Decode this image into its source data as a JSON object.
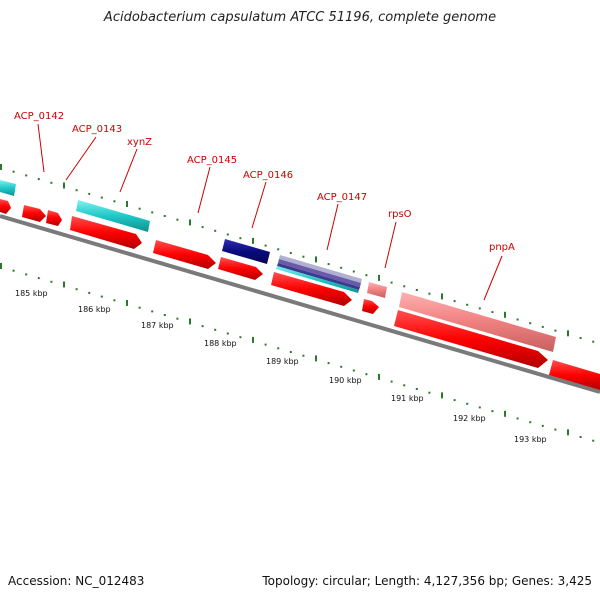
{
  "header": {
    "title": "Acidobacterium capsulatum ATCC 51196, complete genome"
  },
  "footer": {
    "accession": "Accession: NC_012483",
    "summary": "Topology: circular; Length: 4,127,356 bp; Genes: 3,425"
  },
  "colors": {
    "backbone": "#7a7a7a",
    "forward_gene": "#ff0000",
    "reverse_gene_light": "#f08080",
    "cyan_gene": "#20c8c8",
    "navy_gene": "#0a0a80",
    "purple_gene": "#6a5aa8",
    "label": "#cc0000",
    "tick": "#2a7a2a"
  },
  "gene_labels": [
    {
      "name": "ACP_0142"
    },
    {
      "name": "ACP_0143"
    },
    {
      "name": "xynZ"
    },
    {
      "name": "ACP_0145"
    },
    {
      "name": "ACP_0146"
    },
    {
      "name": "ACP_0147"
    },
    {
      "name": "rpsO"
    },
    {
      "name": "pnpA"
    }
  ],
  "scale_labels": [
    "185 kbp",
    "186 kbp",
    "187 kbp",
    "188 kbp",
    "189 kbp",
    "190 kbp",
    "191 kbp",
    "192 kbp",
    "193 kbp"
  ]
}
